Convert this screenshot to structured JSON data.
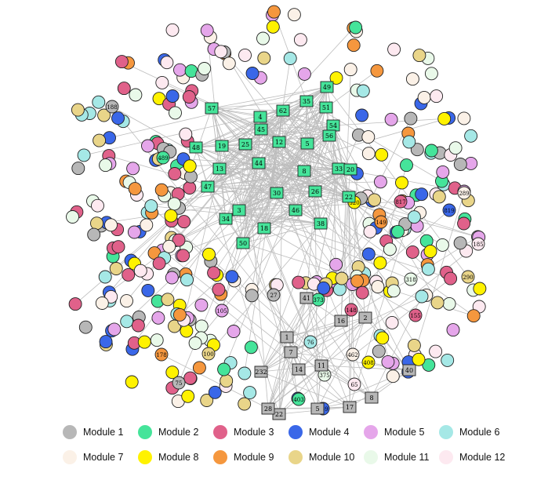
{
  "modules": [
    {
      "id": 1,
      "label": "Module 1",
      "color": "#b7b7b7"
    },
    {
      "id": 2,
      "label": "Module 2",
      "color": "#45e49a"
    },
    {
      "id": 3,
      "label": "Module 3",
      "color": "#e0618a"
    },
    {
      "id": 4,
      "label": "Module 4",
      "color": "#3a67e8"
    },
    {
      "id": 5,
      "label": "Module 5",
      "color": "#e5a6ea"
    },
    {
      "id": 6,
      "label": "Module 6",
      "color": "#a5e8e6"
    },
    {
      "id": 7,
      "label": "Module 7",
      "color": "#fbf1e7"
    },
    {
      "id": 8,
      "label": "Module 8",
      "color": "#fff200"
    },
    {
      "id": 9,
      "label": "Module 9",
      "color": "#f5973e"
    },
    {
      "id": 10,
      "label": "Module 10",
      "color": "#e9d589"
    },
    {
      "id": 11,
      "label": "Module 11",
      "color": "#e9f9e9"
    },
    {
      "id": 12,
      "label": "Module 12",
      "color": "#fde9f0"
    }
  ],
  "hub_cluster_a": {
    "module": 2,
    "labels": [
      "49",
      "35",
      "57",
      "4",
      "62",
      "51",
      "54",
      "56",
      "45",
      "12",
      "5",
      "19",
      "25",
      "48",
      "44",
      "13",
      "8",
      "33",
      "20",
      "47",
      "30",
      "26",
      "22",
      "3",
      "46",
      "34",
      "18",
      "38",
      "50"
    ]
  },
  "hub_cluster_b": {
    "module": 1,
    "labels": [
      "41",
      "2",
      "16",
      "1",
      "7",
      "14",
      "11",
      "232",
      "5",
      "17",
      "8",
      "40",
      "22",
      "28"
    ]
  },
  "labeled_circles": [
    "188",
    "489",
    "817",
    "819",
    "293",
    "205",
    "289",
    "320",
    "149",
    "290",
    "318",
    "185",
    "27",
    "373",
    "148",
    "403",
    "105",
    "76",
    "462",
    "408",
    "178",
    "100",
    "375",
    "65",
    "75",
    "403",
    "155",
    "339"
  ]
}
